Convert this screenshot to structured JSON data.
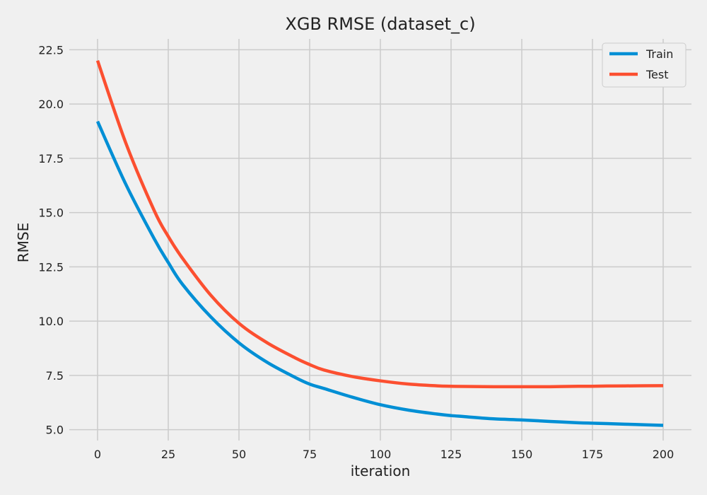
{
  "chart_data": {
    "type": "line",
    "title": "XGB RMSE (dataset_c)",
    "xlabel": "iteration",
    "ylabel": "RMSE",
    "xlim": [
      -10,
      210
    ],
    "ylim": [
      4.5,
      23
    ],
    "xticks": [
      0,
      25,
      50,
      75,
      100,
      125,
      150,
      175,
      200
    ],
    "yticks": [
      5.0,
      7.5,
      10.0,
      12.5,
      15.0,
      17.5,
      20.0,
      22.5
    ],
    "grid": true,
    "legend_position": "top-right",
    "series": [
      {
        "name": "Train",
        "color": "#008fd5",
        "x": [
          0,
          10,
          20,
          25,
          30,
          40,
          50,
          60,
          70,
          75,
          80,
          90,
          100,
          110,
          120,
          125,
          130,
          140,
          150,
          160,
          170,
          175,
          180,
          190,
          200
        ],
        "y": [
          19.2,
          16.3,
          13.8,
          12.7,
          11.7,
          10.2,
          9.0,
          8.1,
          7.4,
          7.1,
          6.9,
          6.5,
          6.15,
          5.9,
          5.72,
          5.65,
          5.6,
          5.5,
          5.45,
          5.38,
          5.32,
          5.3,
          5.28,
          5.24,
          5.2
        ]
      },
      {
        "name": "Test",
        "color": "#fc4f30",
        "x": [
          0,
          10,
          20,
          25,
          30,
          40,
          50,
          60,
          70,
          75,
          80,
          90,
          100,
          110,
          120,
          125,
          130,
          140,
          150,
          160,
          170,
          175,
          180,
          190,
          200
        ],
        "y": [
          22.0,
          18.2,
          15.1,
          13.9,
          12.9,
          11.2,
          9.9,
          9.0,
          8.3,
          8.0,
          7.75,
          7.45,
          7.25,
          7.1,
          7.02,
          7.0,
          6.99,
          6.98,
          6.98,
          6.98,
          7.0,
          7.0,
          7.01,
          7.02,
          7.03
        ]
      }
    ]
  }
}
